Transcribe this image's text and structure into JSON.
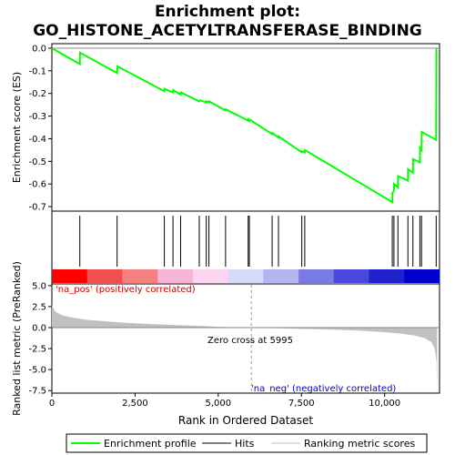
{
  "chart_data": {
    "type": "line",
    "title_lines": [
      "Enrichment plot:",
      "GO_HISTONE_ACETYLTRANSFERASE_BINDING"
    ],
    "top_panel": {
      "ylabel": "Enrichment score (ES)",
      "ylim": [
        -0.72,
        0.02
      ],
      "yticks": [
        "0.0",
        "-0.1",
        "-0.2",
        "-0.3",
        "-0.4",
        "-0.5",
        "-0.6",
        "-0.7"
      ],
      "ytick_values": [
        0.0,
        -0.1,
        -0.2,
        -0.3,
        -0.4,
        -0.5,
        -0.6,
        -0.7
      ],
      "series_name": "Enrichment profile",
      "color": "#00ff00",
      "profile": [
        [
          0,
          0.0
        ],
        [
          840,
          -0.07
        ],
        [
          845,
          -0.02
        ],
        [
          1960,
          -0.11
        ],
        [
          1965,
          -0.08
        ],
        [
          3380,
          -0.19
        ],
        [
          3385,
          -0.18
        ],
        [
          3640,
          -0.195
        ],
        [
          3645,
          -0.185
        ],
        [
          3870,
          -0.205
        ],
        [
          3875,
          -0.195
        ],
        [
          4430,
          -0.235
        ],
        [
          4450,
          -0.23
        ],
        [
          4640,
          -0.24
        ],
        [
          4650,
          -0.235
        ],
        [
          4720,
          -0.24
        ],
        [
          4725,
          -0.235
        ],
        [
          5220,
          -0.275
        ],
        [
          5225,
          -0.27
        ],
        [
          5900,
          -0.32
        ],
        [
          5905,
          -0.315
        ],
        [
          5935,
          -0.32
        ],
        [
          5940,
          -0.315
        ],
        [
          6620,
          -0.38
        ],
        [
          6625,
          -0.375
        ],
        [
          6810,
          -0.395
        ],
        [
          6815,
          -0.39
        ],
        [
          7510,
          -0.46
        ],
        [
          7515,
          -0.455
        ],
        [
          7600,
          -0.46
        ],
        [
          7605,
          -0.45
        ],
        [
          10230,
          -0.68
        ],
        [
          10235,
          -0.64
        ],
        [
          10280,
          -0.63
        ],
        [
          10285,
          -0.6
        ],
        [
          10400,
          -0.615
        ],
        [
          10405,
          -0.565
        ],
        [
          10700,
          -0.585
        ],
        [
          10705,
          -0.535
        ],
        [
          10850,
          -0.55
        ],
        [
          10855,
          -0.49
        ],
        [
          11060,
          -0.505
        ],
        [
          11065,
          -0.44
        ],
        [
          11110,
          -0.45
        ],
        [
          11115,
          -0.37
        ],
        [
          11550,
          -0.405
        ],
        [
          11555,
          0.0
        ]
      ]
    },
    "hits_panel": {
      "series_name": "Hits",
      "positions": [
        840,
        1960,
        3380,
        3640,
        3870,
        4430,
        4640,
        4720,
        5220,
        5900,
        5935,
        6620,
        6810,
        7510,
        7600,
        10230,
        10280,
        10400,
        10700,
        10850,
        11060,
        11110,
        11550
      ]
    },
    "bottom_panel": {
      "ylabel": "Ranked list metric (PreRanked)",
      "ylim": [
        -7.8,
        5.2
      ],
      "yticks": [
        "5.0",
        "2.5",
        "0.0",
        "-2.5",
        "-5.0",
        "-7.5"
      ],
      "ytick_values": [
        5.0,
        2.5,
        0.0,
        -2.5,
        -5.0,
        -7.5
      ],
      "series_name": "Ranking metric scores",
      "color": "#c0c0c0",
      "metric": [
        [
          0,
          2.7
        ],
        [
          100,
          1.9
        ],
        [
          300,
          1.5
        ],
        [
          600,
          1.2
        ],
        [
          1000,
          0.95
        ],
        [
          1500,
          0.78
        ],
        [
          2000,
          0.63
        ],
        [
          2500,
          0.52
        ],
        [
          3000,
          0.42
        ],
        [
          3500,
          0.34
        ],
        [
          4000,
          0.26
        ],
        [
          4500,
          0.18
        ],
        [
          5000,
          0.1
        ],
        [
          5500,
          0.04
        ],
        [
          5995,
          0.0
        ],
        [
          6500,
          -0.05
        ],
        [
          7000,
          -0.1
        ],
        [
          7500,
          -0.15
        ],
        [
          8000,
          -0.2
        ],
        [
          8500,
          -0.26
        ],
        [
          9000,
          -0.33
        ],
        [
          9500,
          -0.42
        ],
        [
          10000,
          -0.55
        ],
        [
          10500,
          -0.72
        ],
        [
          10900,
          -0.95
        ],
        [
          11200,
          -1.25
        ],
        [
          11400,
          -1.7
        ],
        [
          11500,
          -2.4
        ],
        [
          11560,
          -4.0
        ],
        [
          11580,
          -7.3
        ]
      ],
      "annotations": {
        "pos_label": "'na_pos' (positively correlated)",
        "neg_label": "'na_neg' (negatively correlated)",
        "zero_cross": "Zero cross at 5995",
        "zero_cross_value": 5995
      }
    },
    "xlabel": "Rank in Ordered Dataset",
    "xlim": [
      0,
      11650
    ],
    "xticks": [
      "0",
      "2,500",
      "5,000",
      "7,500",
      "10,000"
    ],
    "xtick_values": [
      0,
      2500,
      5000,
      7500,
      10000
    ],
    "heat_colors": [
      "#ff0000",
      "#f04f4f",
      "#f48080",
      "#f8b4d4",
      "#fcd4f0",
      "#d8d8f8",
      "#b4b4f0",
      "#7a7ae4",
      "#4848dc",
      "#2222cc",
      "#0000cc"
    ],
    "legend": {
      "items": [
        "Enrichment profile",
        "Hits",
        "Ranking metric scores"
      ],
      "colors": [
        "#00ff00",
        "#000000",
        "#c0c0c0"
      ],
      "placement": "bottom"
    }
  }
}
